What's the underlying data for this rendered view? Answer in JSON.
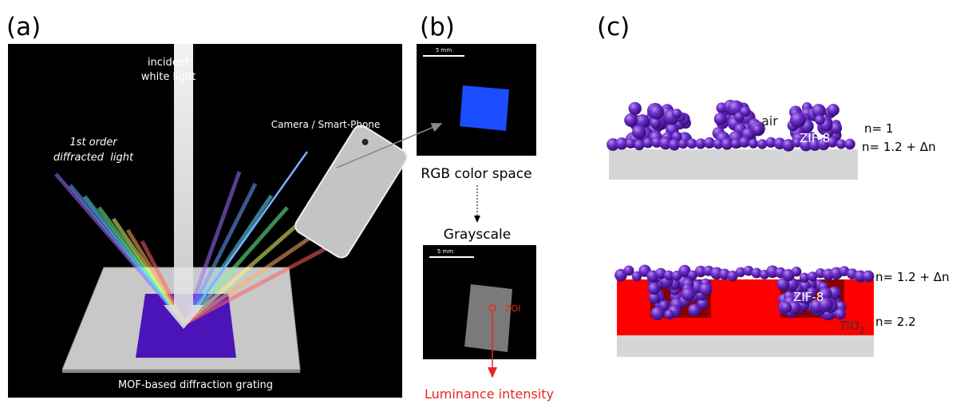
{
  "panel_a": {
    "label": "(a)",
    "incident_light": [
      "incident",
      "white light"
    ],
    "diffracted_light": [
      "1st order",
      "diffracted  light"
    ],
    "camera": "Camera / Smart-Phone",
    "grating": "MOF-based diffraction grating"
  },
  "panel_b": {
    "label": "(b)",
    "scale_bar_rgb": "5 mm",
    "rgb": "RGB color space",
    "grayscale": "Grayscale",
    "scale_bar_gray": "5 mm",
    "zoi": "ZOI",
    "luminance": "Luminance intensity"
  },
  "panel_c": {
    "label": "(c)",
    "top": {
      "n_air": "n= 1",
      "air": "air",
      "zif8": "ZIF-8",
      "n_zif8": "n= 1.2 + Δn"
    },
    "bottom": {
      "n_zif8": "n= 1.2 + Δn",
      "zif8": "ZIF-8",
      "n_tio2": "n= 2.2",
      "tio2": {
        "text": "TiO",
        "subscript": "2"
      }
    }
  }
}
